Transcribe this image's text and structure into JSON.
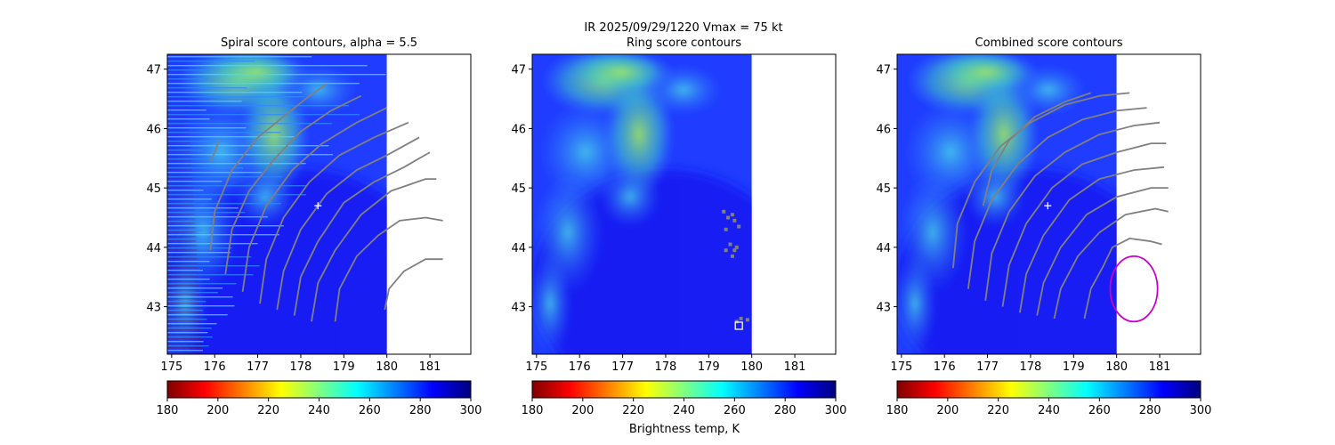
{
  "figure": {
    "suptitle_line1": "IR  2025/09/29/1220    Vmax = 75 kt",
    "colorbar_label": "Brightness temp, K"
  },
  "colors": {
    "contour": "#808080",
    "center_marker": "#ffffff",
    "ring_circle": "#cc00cc"
  },
  "chart_data": [
    {
      "type": "heatmap",
      "title": "Spiral score contours, alpha =  5.5",
      "x_ticks": [
        175,
        176,
        177,
        178,
        179,
        180,
        181
      ],
      "y_ticks": [
        43,
        44,
        45,
        46,
        47
      ],
      "xlim": [
        174.9,
        181.95
      ],
      "ylim": [
        42.2,
        47.25
      ],
      "data_extent_x": [
        174.9,
        180.0
      ],
      "colormap": "jet",
      "colorbar_ticks": [
        180,
        200,
        220,
        240,
        260,
        280,
        300
      ],
      "clim": [
        180,
        300
      ],
      "center": [
        178.4,
        44.7
      ],
      "contours": [
        [
          [
            175.9,
            45.45
          ],
          [
            176.0,
            45.6
          ],
          [
            176.1,
            45.8
          ]
        ],
        [
          [
            175.9,
            43.95
          ],
          [
            176.0,
            44.6
          ],
          [
            176.4,
            45.3
          ],
          [
            177.0,
            45.85
          ],
          [
            177.6,
            46.2
          ],
          [
            178.2,
            46.55
          ],
          [
            178.6,
            46.75
          ]
        ],
        [
          [
            176.25,
            43.55
          ],
          [
            176.4,
            44.3
          ],
          [
            176.8,
            44.95
          ],
          [
            177.4,
            45.5
          ],
          [
            178.0,
            45.95
          ],
          [
            178.7,
            46.3
          ],
          [
            179.4,
            46.55
          ]
        ],
        [
          [
            176.65,
            43.25
          ],
          [
            176.8,
            44.0
          ],
          [
            177.2,
            44.7
          ],
          [
            177.8,
            45.3
          ],
          [
            178.5,
            45.75
          ],
          [
            179.3,
            46.1
          ],
          [
            180.0,
            46.35
          ]
        ],
        [
          [
            177.05,
            43.05
          ],
          [
            177.2,
            43.8
          ],
          [
            177.6,
            44.5
          ],
          [
            178.2,
            45.1
          ],
          [
            178.9,
            45.55
          ],
          [
            179.7,
            45.85
          ],
          [
            180.5,
            46.1
          ]
        ],
        [
          [
            177.45,
            42.95
          ],
          [
            177.6,
            43.6
          ],
          [
            178.0,
            44.3
          ],
          [
            178.6,
            44.9
          ],
          [
            179.3,
            45.3
          ],
          [
            180.0,
            45.55
          ],
          [
            180.75,
            45.85
          ]
        ],
        [
          [
            177.85,
            42.85
          ],
          [
            178.0,
            43.5
          ],
          [
            178.4,
            44.1
          ],
          [
            179.0,
            44.75
          ],
          [
            179.7,
            45.1
          ],
          [
            180.4,
            45.35
          ],
          [
            181.0,
            45.6
          ]
        ],
        [
          [
            178.25,
            42.75
          ],
          [
            178.4,
            43.4
          ],
          [
            178.8,
            43.95
          ],
          [
            179.4,
            44.55
          ],
          [
            180.1,
            44.95
          ],
          [
            180.9,
            45.15
          ],
          [
            181.15,
            45.15
          ]
        ],
        [
          [
            178.8,
            42.75
          ],
          [
            178.9,
            43.3
          ],
          [
            179.3,
            43.85
          ],
          [
            179.8,
            44.2
          ],
          [
            180.3,
            44.45
          ],
          [
            180.9,
            44.5
          ],
          [
            181.3,
            44.45
          ]
        ],
        [
          [
            179.95,
            42.95
          ],
          [
            180.05,
            43.3
          ],
          [
            180.4,
            43.6
          ],
          [
            180.9,
            43.8
          ],
          [
            181.3,
            43.8
          ]
        ]
      ],
      "magenta_circle": null,
      "banded": true
    },
    {
      "type": "heatmap",
      "title": "Ring score contours",
      "x_ticks": [
        175,
        176,
        177,
        178,
        179,
        180,
        181
      ],
      "y_ticks": [
        43,
        44,
        45,
        46,
        47
      ],
      "xlim": [
        174.9,
        181.95
      ],
      "ylim": [
        42.2,
        47.25
      ],
      "data_extent_x": [
        174.9,
        180.0
      ],
      "colormap": "jet",
      "colorbar_ticks": [
        180,
        200,
        220,
        240,
        260,
        280,
        300
      ],
      "clim": [
        180,
        300
      ],
      "center": null,
      "contours": [],
      "ring_specks": [
        [
          179.35,
          44.6
        ],
        [
          179.45,
          44.5
        ],
        [
          179.55,
          44.55
        ],
        [
          179.6,
          44.45
        ],
        [
          179.7,
          44.35
        ],
        [
          179.4,
          44.3
        ],
        [
          179.5,
          44.05
        ],
        [
          179.6,
          43.95
        ],
        [
          179.55,
          43.85
        ],
        [
          179.65,
          44.0
        ],
        [
          179.4,
          43.95
        ],
        [
          179.75,
          42.8
        ],
        [
          179.9,
          42.78
        ],
        [
          179.65,
          42.75
        ]
      ],
      "box_marker": [
        179.7,
        42.68
      ],
      "magenta_circle": null,
      "banded": false
    },
    {
      "type": "heatmap",
      "title": "Combined score contours",
      "x_ticks": [
        175,
        176,
        177,
        178,
        179,
        180,
        181
      ],
      "y_ticks": [
        43,
        44,
        45,
        46,
        47
      ],
      "xlim": [
        174.9,
        181.95
      ],
      "ylim": [
        42.2,
        47.25
      ],
      "data_extent_x": [
        174.9,
        180.0
      ],
      "colormap": "jet",
      "colorbar_ticks": [
        180,
        200,
        220,
        240,
        260,
        280,
        300
      ],
      "clim": [
        180,
        300
      ],
      "center": [
        178.4,
        44.7
      ],
      "contours": [
        [
          [
            176.9,
            44.7
          ],
          [
            177.1,
            45.3
          ],
          [
            177.5,
            45.8
          ],
          [
            178.1,
            46.2
          ],
          [
            178.8,
            46.45
          ],
          [
            179.4,
            46.6
          ]
        ],
        [
          [
            176.2,
            43.65
          ],
          [
            176.3,
            44.4
          ],
          [
            176.7,
            45.1
          ],
          [
            177.3,
            45.7
          ],
          [
            178.0,
            46.1
          ],
          [
            178.8,
            46.4
          ],
          [
            179.6,
            46.55
          ],
          [
            180.3,
            46.6
          ]
        ],
        [
          [
            176.55,
            43.3
          ],
          [
            176.7,
            44.1
          ],
          [
            177.1,
            44.8
          ],
          [
            177.7,
            45.4
          ],
          [
            178.4,
            45.85
          ],
          [
            179.2,
            46.15
          ],
          [
            180.0,
            46.3
          ],
          [
            180.7,
            46.35
          ]
        ],
        [
          [
            176.95,
            43.1
          ],
          [
            177.1,
            43.9
          ],
          [
            177.5,
            44.6
          ],
          [
            178.1,
            45.2
          ],
          [
            178.8,
            45.6
          ],
          [
            179.6,
            45.9
          ],
          [
            180.4,
            46.05
          ],
          [
            181.0,
            46.1
          ]
        ],
        [
          [
            177.35,
            43.0
          ],
          [
            177.5,
            43.7
          ],
          [
            177.9,
            44.4
          ],
          [
            178.5,
            45.0
          ],
          [
            179.2,
            45.4
          ],
          [
            180.0,
            45.6
          ],
          [
            180.8,
            45.75
          ],
          [
            181.15,
            45.75
          ]
        ],
        [
          [
            177.75,
            42.9
          ],
          [
            177.9,
            43.55
          ],
          [
            178.3,
            44.2
          ],
          [
            178.9,
            44.8
          ],
          [
            179.6,
            45.15
          ],
          [
            180.4,
            45.3
          ],
          [
            181.1,
            45.35
          ]
        ],
        [
          [
            178.15,
            42.85
          ],
          [
            178.3,
            43.4
          ],
          [
            178.7,
            44.0
          ],
          [
            179.3,
            44.55
          ],
          [
            180.0,
            44.85
          ],
          [
            180.8,
            45.0
          ],
          [
            181.2,
            45.0
          ]
        ],
        [
          [
            178.55,
            42.8
          ],
          [
            178.7,
            43.3
          ],
          [
            179.1,
            43.85
          ],
          [
            179.6,
            44.25
          ],
          [
            180.2,
            44.55
          ],
          [
            180.9,
            44.65
          ],
          [
            181.2,
            44.6
          ]
        ],
        [
          [
            179.25,
            42.8
          ],
          [
            179.4,
            43.3
          ],
          [
            179.7,
            43.7
          ],
          [
            179.9,
            44.0
          ],
          [
            180.3,
            44.15
          ],
          [
            180.8,
            44.1
          ],
          [
            181.05,
            44.05
          ]
        ]
      ],
      "magenta_circle": {
        "cx": 180.4,
        "cy": 43.3,
        "r": 0.55
      },
      "banded": false
    }
  ]
}
